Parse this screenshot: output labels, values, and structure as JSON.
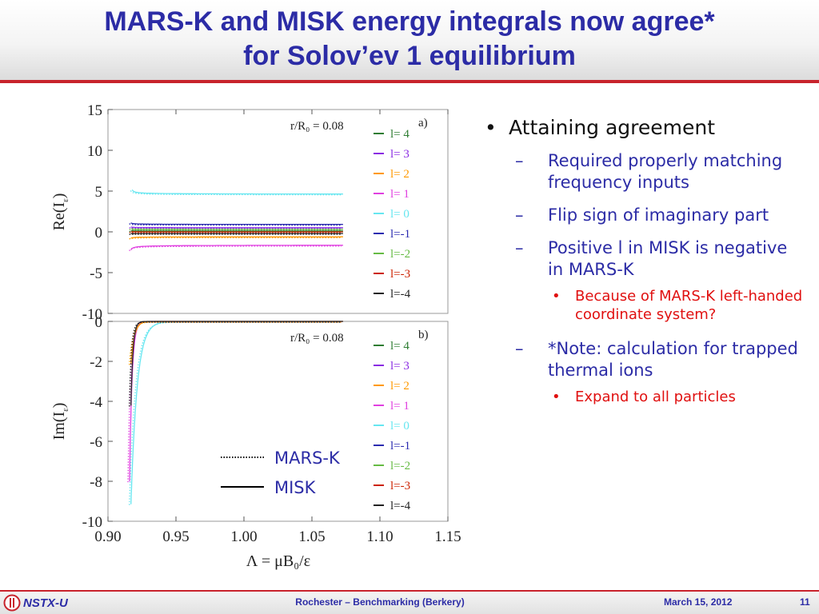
{
  "title": {
    "line1": "MARS-K and MISK energy integrals now agree*",
    "line2": "for Solov’ev 1 equilibrium"
  },
  "bullets": {
    "main": "Attaining agreement",
    "items": [
      "Required properly matching frequency inputs",
      "Flip sign of imaginary part",
      "Positive l in MISK is negative in MARS-K",
      "*Note: calculation for trapped thermal ions"
    ],
    "subitems": [
      "Because of MARS-K left-handed coordinate system?",
      "Expand to all particles"
    ]
  },
  "colors": {
    "title": "#2c2ca6",
    "accent_red": "#c8232c",
    "subitem_red": "#e01010"
  },
  "chart_data": [
    {
      "type": "line",
      "panel_label": "a)",
      "annotation": "r/R₀ = 0.08",
      "ylabel_main": "Re(I",
      "ylabel_sub": "ε",
      "ylabel_end": ")",
      "ylim": [
        -10,
        15
      ],
      "yticks": [
        "15",
        "10",
        "5",
        "0",
        "-5",
        "-10"
      ],
      "xlim": [
        0.9,
        1.15
      ],
      "legend": [
        {
          "label": "l= 4",
          "color": "#2e7d32"
        },
        {
          "label": "l= 3",
          "color": "#8a2be2"
        },
        {
          "label": "l= 2",
          "color": "#ff9900"
        },
        {
          "label": "l= 1",
          "color": "#e040e0"
        },
        {
          "label": "l= 0",
          "color": "#66e6f0"
        },
        {
          "label": "l=-1",
          "color": "#2b2bb0"
        },
        {
          "label": "l=-2",
          "color": "#66bb44"
        },
        {
          "label": "l=-3",
          "color": "#cc2200"
        },
        {
          "label": "l=-4",
          "color": "#222222"
        }
      ],
      "series": [
        {
          "color": "#66e6f0",
          "asym": 4.6,
          "A": 0.78,
          "p": 0.5,
          "x0": 0.9175
        },
        {
          "color": "#2b2bb0",
          "asym": 0.9,
          "A": 0.28,
          "p": 0.5,
          "x0": 0.9165
        },
        {
          "color": "#8a2be2",
          "asym": 0.5,
          "A": 0.13,
          "p": 0.5,
          "x0": 0.9165
        },
        {
          "color": "#66bb44",
          "asym": 0.3,
          "A": 0.09,
          "p": 0.5,
          "x0": 0.9165
        },
        {
          "color": "#2e7d32",
          "asym": 0.1,
          "A": 0.06,
          "p": 0.5,
          "x0": 0.9165
        },
        {
          "color": "#cc2200",
          "asym": 0.0,
          "A": 0.02,
          "p": 0.5,
          "x0": 0.9165
        },
        {
          "color": "#222222",
          "asym": -0.2,
          "A": -0.03,
          "p": 0.5,
          "x0": 0.9165
        },
        {
          "color": "#ff9900",
          "asym": -0.6,
          "A": -0.25,
          "p": 0.5,
          "x0": 0.9165
        },
        {
          "color": "#e040e0",
          "asym": -1.6,
          "A": -0.9,
          "p": 0.5,
          "x0": 0.9165
        }
      ]
    },
    {
      "type": "line",
      "panel_label": "b)",
      "annotation": "r/R₀ = 0.08",
      "ylabel_main": "Im(I",
      "ylabel_sub": "ε",
      "ylabel_end": ")",
      "ylim": [
        -10,
        0
      ],
      "yticks": [
        "0",
        "-2",
        "-4",
        "-6",
        "-8",
        "-10"
      ],
      "xlim": [
        0.9,
        1.15
      ],
      "xticks": [
        "0.90",
        "0.95",
        "1.00",
        "1.05",
        "1.10",
        "1.15"
      ],
      "xlabel": "Λ = μB₀/ε",
      "legend": [
        {
          "label": "l= 4",
          "color": "#2e7d32"
        },
        {
          "label": "l= 3",
          "color": "#8a2be2"
        },
        {
          "label": "l= 2",
          "color": "#ff9900"
        },
        {
          "label": "l= 1",
          "color": "#e040e0"
        },
        {
          "label": "l= 0",
          "color": "#66e6f0"
        },
        {
          "label": "l=-1",
          "color": "#2b2bb0"
        },
        {
          "label": "l=-2",
          "color": "#66bb44"
        },
        {
          "label": "l=-3",
          "color": "#cc2200"
        },
        {
          "label": "l=-4",
          "color": "#222222"
        }
      ],
      "series": [
        {
          "color": "#66e6f0",
          "start": -10,
          "x0": 0.9165,
          "decay": 0.0045
        },
        {
          "color": "#e040e0",
          "start": -10,
          "x0": 0.9155,
          "decay": 0.0018
        },
        {
          "color": "#ff9900",
          "start": -2.5,
          "x0": 0.9165,
          "decay": 0.0025
        },
        {
          "color": "#222222",
          "start": -5.5,
          "x0": 0.9165,
          "decay": 0.0015
        }
      ],
      "line_legend": [
        {
          "label": "MARS-K",
          "style": "dotted"
        },
        {
          "label": "MISK",
          "style": "solid"
        }
      ]
    }
  ],
  "footer": {
    "logo_text": "NSTX-U",
    "center": "Rochester – Benchmarking (Berkery)",
    "date": "March 15, 2012",
    "page": "11"
  }
}
